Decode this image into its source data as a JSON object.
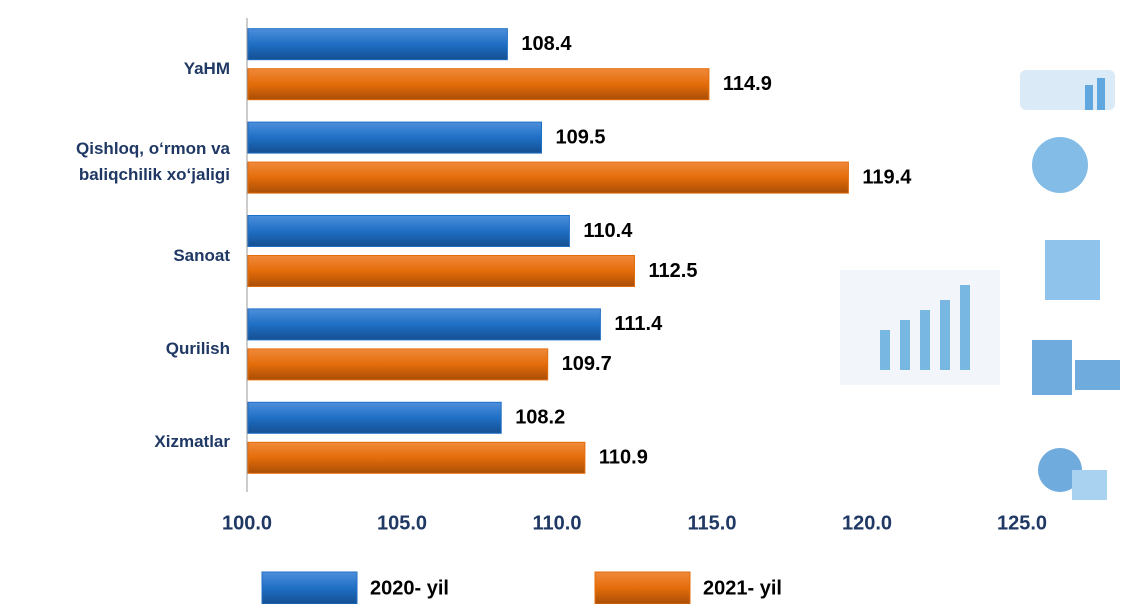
{
  "chart_data": {
    "type": "hbar",
    "categories": [
      "YaHM",
      "Qishloq, o‘rmon va baliqchilik xo‘jaligi",
      "Sanoat",
      "Qurilish",
      "Xizmatlar"
    ],
    "series": [
      {
        "name": "2020- yil",
        "color": "#1f6fc5",
        "values": [
          108.4,
          109.5,
          110.4,
          111.4,
          108.2
        ]
      },
      {
        "name": "2021- yil",
        "color": "#e46c0a",
        "values": [
          114.9,
          119.4,
          112.5,
          109.7,
          110.9
        ]
      }
    ],
    "xlim": [
      100,
      125
    ],
    "xticks": [
      {
        "value": 100,
        "label": "100.0"
      },
      {
        "value": 105,
        "label": "105.0"
      },
      {
        "value": 110,
        "label": "110.0"
      },
      {
        "value": 115,
        "label": "115.0"
      },
      {
        "value": 120,
        "label": "120.0"
      },
      {
        "value": 125,
        "label": "125.0"
      }
    ],
    "legend": "bottom"
  }
}
